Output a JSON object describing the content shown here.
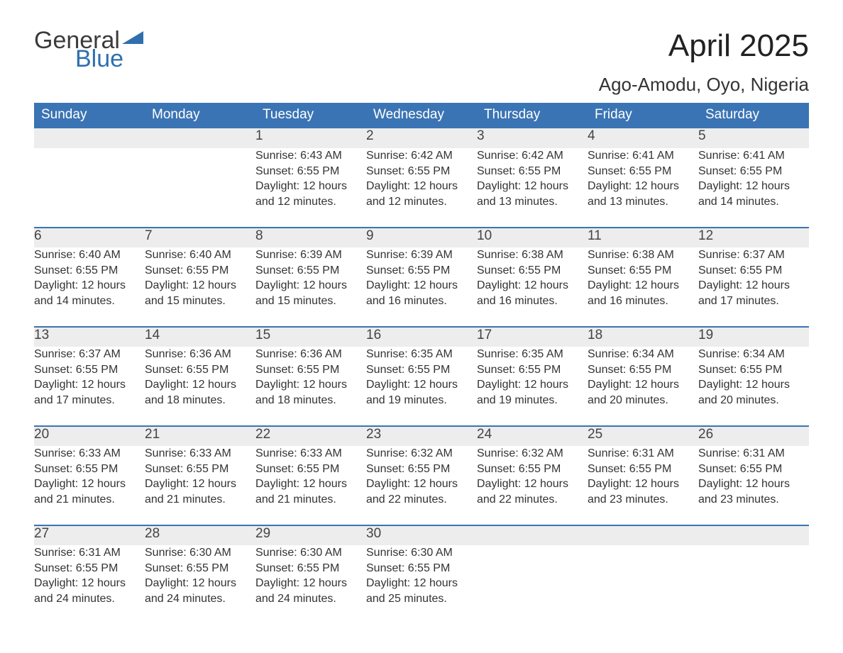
{
  "brand": {
    "general": "General",
    "blue": "Blue"
  },
  "title": "April 2025",
  "subtitle": "Ago-Amodu, Oyo, Nigeria",
  "colors": {
    "header_bg": "#3b74b4",
    "header_text": "#ffffff",
    "daynum_bg": "#ededed",
    "week_sep": "#3b74b4",
    "text": "#333333",
    "logo_blue": "#2f6fae",
    "page_bg": "#ffffff"
  },
  "day_headers": [
    "Sunday",
    "Monday",
    "Tuesday",
    "Wednesday",
    "Thursday",
    "Friday",
    "Saturday"
  ],
  "weeks": [
    [
      null,
      null,
      {
        "n": "1",
        "sr": "Sunrise: 6:43 AM",
        "ss": "Sunset: 6:55 PM",
        "dl": "Daylight: 12 hours and 12 minutes."
      },
      {
        "n": "2",
        "sr": "Sunrise: 6:42 AM",
        "ss": "Sunset: 6:55 PM",
        "dl": "Daylight: 12 hours and 12 minutes."
      },
      {
        "n": "3",
        "sr": "Sunrise: 6:42 AM",
        "ss": "Sunset: 6:55 PM",
        "dl": "Daylight: 12 hours and 13 minutes."
      },
      {
        "n": "4",
        "sr": "Sunrise: 6:41 AM",
        "ss": "Sunset: 6:55 PM",
        "dl": "Daylight: 12 hours and 13 minutes."
      },
      {
        "n": "5",
        "sr": "Sunrise: 6:41 AM",
        "ss": "Sunset: 6:55 PM",
        "dl": "Daylight: 12 hours and 14 minutes."
      }
    ],
    [
      {
        "n": "6",
        "sr": "Sunrise: 6:40 AM",
        "ss": "Sunset: 6:55 PM",
        "dl": "Daylight: 12 hours and 14 minutes."
      },
      {
        "n": "7",
        "sr": "Sunrise: 6:40 AM",
        "ss": "Sunset: 6:55 PM",
        "dl": "Daylight: 12 hours and 15 minutes."
      },
      {
        "n": "8",
        "sr": "Sunrise: 6:39 AM",
        "ss": "Sunset: 6:55 PM",
        "dl": "Daylight: 12 hours and 15 minutes."
      },
      {
        "n": "9",
        "sr": "Sunrise: 6:39 AM",
        "ss": "Sunset: 6:55 PM",
        "dl": "Daylight: 12 hours and 16 minutes."
      },
      {
        "n": "10",
        "sr": "Sunrise: 6:38 AM",
        "ss": "Sunset: 6:55 PM",
        "dl": "Daylight: 12 hours and 16 minutes."
      },
      {
        "n": "11",
        "sr": "Sunrise: 6:38 AM",
        "ss": "Sunset: 6:55 PM",
        "dl": "Daylight: 12 hours and 16 minutes."
      },
      {
        "n": "12",
        "sr": "Sunrise: 6:37 AM",
        "ss": "Sunset: 6:55 PM",
        "dl": "Daylight: 12 hours and 17 minutes."
      }
    ],
    [
      {
        "n": "13",
        "sr": "Sunrise: 6:37 AM",
        "ss": "Sunset: 6:55 PM",
        "dl": "Daylight: 12 hours and 17 minutes."
      },
      {
        "n": "14",
        "sr": "Sunrise: 6:36 AM",
        "ss": "Sunset: 6:55 PM",
        "dl": "Daylight: 12 hours and 18 minutes."
      },
      {
        "n": "15",
        "sr": "Sunrise: 6:36 AM",
        "ss": "Sunset: 6:55 PM",
        "dl": "Daylight: 12 hours and 18 minutes."
      },
      {
        "n": "16",
        "sr": "Sunrise: 6:35 AM",
        "ss": "Sunset: 6:55 PM",
        "dl": "Daylight: 12 hours and 19 minutes."
      },
      {
        "n": "17",
        "sr": "Sunrise: 6:35 AM",
        "ss": "Sunset: 6:55 PM",
        "dl": "Daylight: 12 hours and 19 minutes."
      },
      {
        "n": "18",
        "sr": "Sunrise: 6:34 AM",
        "ss": "Sunset: 6:55 PM",
        "dl": "Daylight: 12 hours and 20 minutes."
      },
      {
        "n": "19",
        "sr": "Sunrise: 6:34 AM",
        "ss": "Sunset: 6:55 PM",
        "dl": "Daylight: 12 hours and 20 minutes."
      }
    ],
    [
      {
        "n": "20",
        "sr": "Sunrise: 6:33 AM",
        "ss": "Sunset: 6:55 PM",
        "dl": "Daylight: 12 hours and 21 minutes."
      },
      {
        "n": "21",
        "sr": "Sunrise: 6:33 AM",
        "ss": "Sunset: 6:55 PM",
        "dl": "Daylight: 12 hours and 21 minutes."
      },
      {
        "n": "22",
        "sr": "Sunrise: 6:33 AM",
        "ss": "Sunset: 6:55 PM",
        "dl": "Daylight: 12 hours and 21 minutes."
      },
      {
        "n": "23",
        "sr": "Sunrise: 6:32 AM",
        "ss": "Sunset: 6:55 PM",
        "dl": "Daylight: 12 hours and 22 minutes."
      },
      {
        "n": "24",
        "sr": "Sunrise: 6:32 AM",
        "ss": "Sunset: 6:55 PM",
        "dl": "Daylight: 12 hours and 22 minutes."
      },
      {
        "n": "25",
        "sr": "Sunrise: 6:31 AM",
        "ss": "Sunset: 6:55 PM",
        "dl": "Daylight: 12 hours and 23 minutes."
      },
      {
        "n": "26",
        "sr": "Sunrise: 6:31 AM",
        "ss": "Sunset: 6:55 PM",
        "dl": "Daylight: 12 hours and 23 minutes."
      }
    ],
    [
      {
        "n": "27",
        "sr": "Sunrise: 6:31 AM",
        "ss": "Sunset: 6:55 PM",
        "dl": "Daylight: 12 hours and 24 minutes."
      },
      {
        "n": "28",
        "sr": "Sunrise: 6:30 AM",
        "ss": "Sunset: 6:55 PM",
        "dl": "Daylight: 12 hours and 24 minutes."
      },
      {
        "n": "29",
        "sr": "Sunrise: 6:30 AM",
        "ss": "Sunset: 6:55 PM",
        "dl": "Daylight: 12 hours and 24 minutes."
      },
      {
        "n": "30",
        "sr": "Sunrise: 6:30 AM",
        "ss": "Sunset: 6:55 PM",
        "dl": "Daylight: 12 hours and 25 minutes."
      },
      null,
      null,
      null
    ]
  ]
}
